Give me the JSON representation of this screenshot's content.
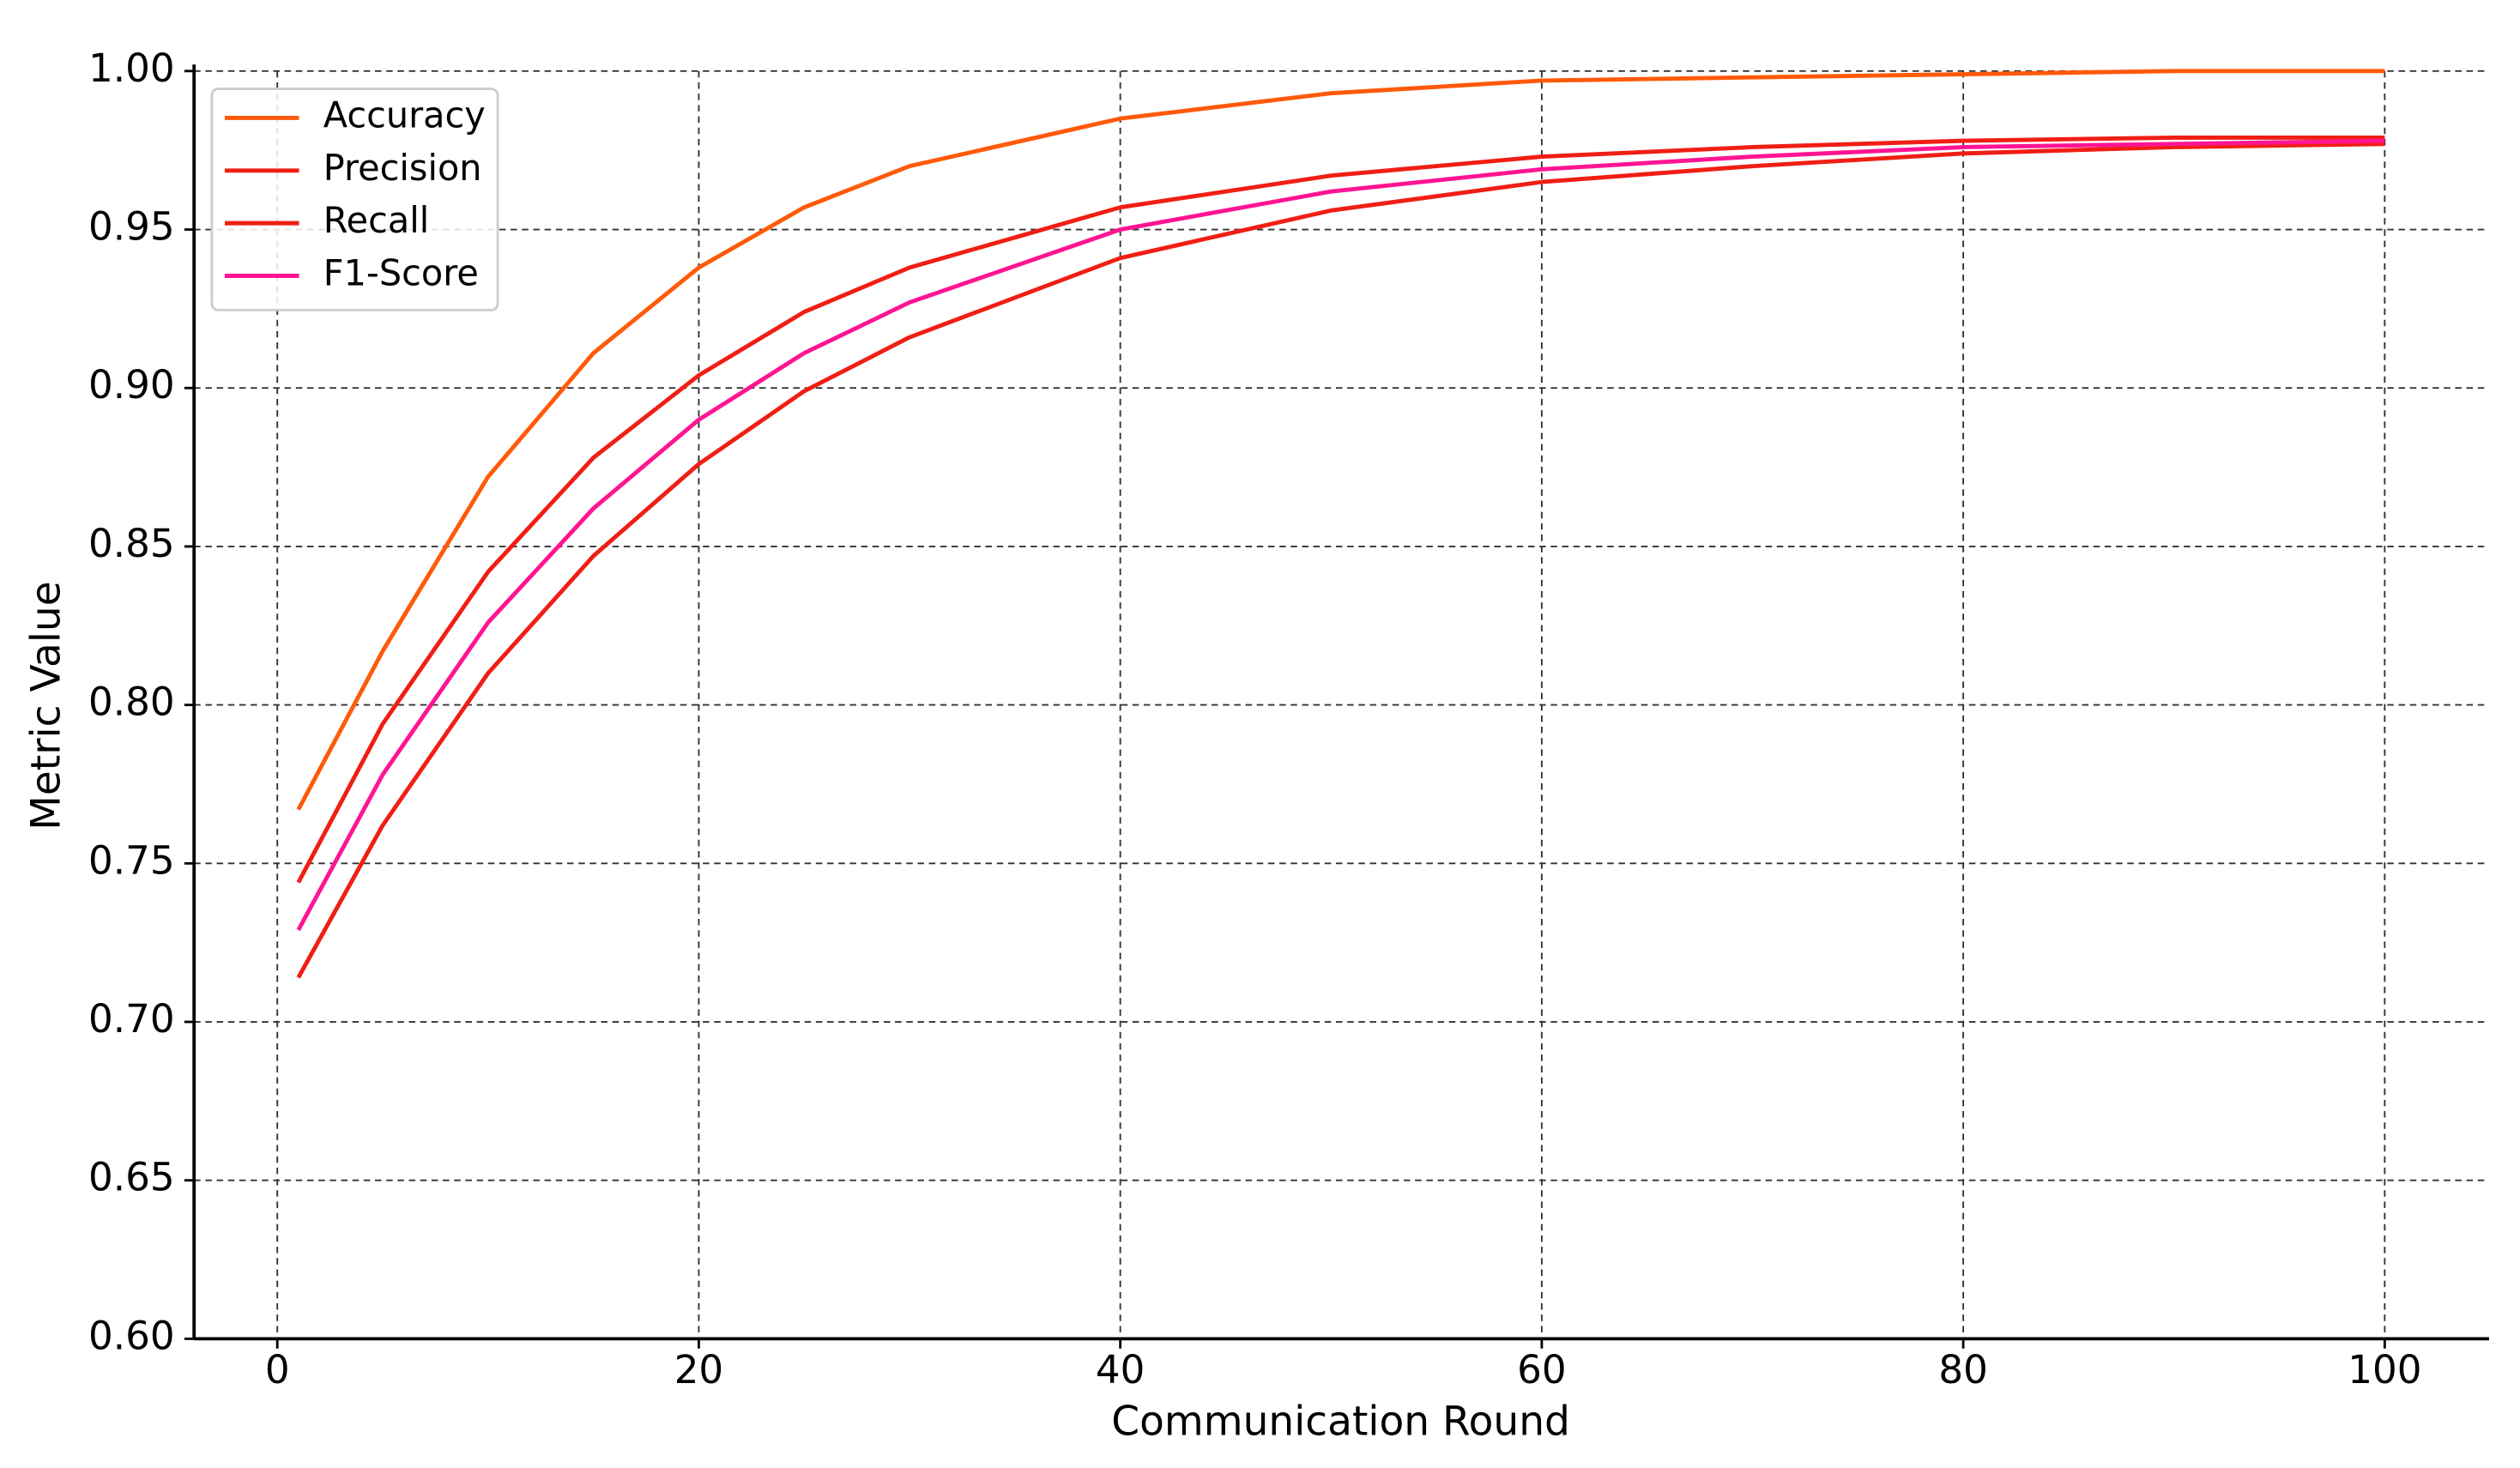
{
  "chart_data": {
    "type": "line",
    "xlabel": "Communication Round",
    "ylabel": "Metric Value",
    "x": [
      1,
      5,
      10,
      15,
      20,
      25,
      30,
      40,
      50,
      60,
      70,
      80,
      90,
      100
    ],
    "series": [
      {
        "name": "Accuracy",
        "color": "#ff5a0a",
        "values": [
          0.767,
          0.817,
          0.872,
          0.911,
          0.938,
          0.957,
          0.97,
          0.985,
          0.993,
          0.997,
          0.998,
          0.999,
          1.0,
          1.0
        ]
      },
      {
        "name": "Precision",
        "color": "#f01e14",
        "values": [
          0.744,
          0.794,
          0.842,
          0.878,
          0.904,
          0.924,
          0.938,
          0.957,
          0.967,
          0.973,
          0.976,
          0.978,
          0.979,
          0.979
        ]
      },
      {
        "name": "Recall",
        "color": "#f01e14",
        "values": [
          0.714,
          0.762,
          0.81,
          0.847,
          0.876,
          0.899,
          0.916,
          0.941,
          0.956,
          0.965,
          0.97,
          0.974,
          0.976,
          0.977
        ]
      },
      {
        "name": "F1-Score",
        "color": "#ff1493",
        "values": [
          0.729,
          0.778,
          0.826,
          0.862,
          0.89,
          0.911,
          0.927,
          0.95,
          0.962,
          0.969,
          0.973,
          0.976,
          0.977,
          0.978
        ]
      }
    ],
    "xlim": [
      -3.95,
      104.95
    ],
    "ylim": [
      0.6,
      1.0
    ],
    "xticks": [
      0,
      20,
      40,
      60,
      80,
      100
    ],
    "yticks": [
      {
        "value": 0.6,
        "label": "0.60"
      },
      {
        "value": 0.65,
        "label": "0.65"
      },
      {
        "value": 0.7,
        "label": "0.70"
      },
      {
        "value": 0.75,
        "label": "0.75"
      },
      {
        "value": 0.8,
        "label": "0.80"
      },
      {
        "value": 0.85,
        "label": "0.85"
      },
      {
        "value": 0.9,
        "label": "0.90"
      },
      {
        "value": 0.95,
        "label": "0.95"
      },
      {
        "value": 1.0,
        "label": "1.00"
      }
    ],
    "grid": true,
    "legend": "upper left"
  }
}
